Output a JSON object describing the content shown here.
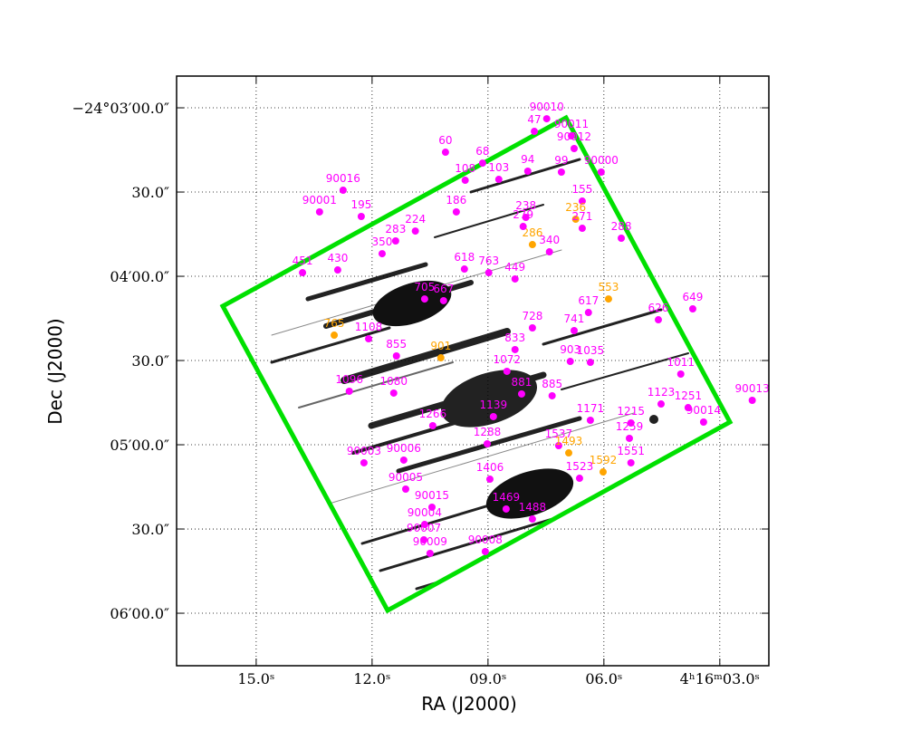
{
  "chart_data": {
    "type": "scatter",
    "x_label": "RA (J2000)",
    "y_label": "Dec (J2000)",
    "xlim": [
      17.06,
      1.73
    ],
    "ylim": [
      -24.105194,
      -24.046861
    ],
    "xticks": [
      {
        "value": 15,
        "label": "15.0ˢ"
      },
      {
        "value": 12,
        "label": "12.0ˢ"
      },
      {
        "value": 9,
        "label": "09.0ˢ"
      },
      {
        "value": 6,
        "label": "06.0ˢ"
      },
      {
        "value": 3,
        "label": "4ʰ16ᵐ03.0ˢ"
      }
    ],
    "yticks": [
      {
        "value": -24.05,
        "label": "−24°03′00.0″"
      },
      {
        "value": -24.058333,
        "label": "30.0″"
      },
      {
        "value": -24.066667,
        "label": "04′00.0″"
      },
      {
        "value": -24.075,
        "label": "30.0″"
      },
      {
        "value": -24.083333,
        "label": "05′00.0″"
      },
      {
        "value": -24.091667,
        "label": "30.0″"
      },
      {
        "value": -24.1,
        "label": "06′00.0″"
      }
    ],
    "grid": true,
    "point_labels": [
      "90010",
      "90011",
      "47",
      "90012",
      "60",
      "68",
      "90000",
      "94",
      "99",
      "103",
      "108",
      "90016",
      "90001",
      "195",
      "155",
      "186",
      "236",
      "238",
      "288",
      "224",
      "283",
      "286",
      "340",
      "430",
      "451",
      "618",
      "763",
      "449",
      "553",
      "617",
      "649",
      "626",
      "705",
      "667",
      "765",
      "1108",
      "728",
      "741",
      "855",
      "901",
      "903",
      "1035",
      "1011",
      "1080",
      "1096",
      "881",
      "885",
      "1139",
      "1171",
      "1123",
      "1251",
      "90013",
      "90014",
      "1215",
      "1259",
      "1266",
      "1288",
      "1537",
      "1493",
      "1551",
      "1592",
      "1523",
      "90003",
      "90006",
      "90005",
      "1406",
      "90015",
      "1469",
      "1488",
      "90004",
      "90007",
      "90009",
      "90008",
      "1072",
      "833",
      "279",
      "271",
      "350"
    ],
    "x": [
      7.48,
      6.84,
      7.8,
      6.77,
      10.1,
      9.14,
      6.07,
      7.97,
      7.1,
      8.72,
      9.59,
      12.75,
      13.36,
      12.28,
      6.56,
      9.82,
      6.73,
      8.02,
      5.55,
      10.88,
      11.39,
      7.85,
      7.41,
      12.89,
      13.8,
      9.61,
      8.98,
      8.3,
      5.88,
      6.4,
      3.7,
      4.59,
      10.64,
      10.15,
      12.98,
      12.09,
      7.85,
      6.77,
      11.37,
      10.22,
      6.87,
      6.35,
      4.01,
      11.44,
      12.59,
      8.13,
      7.34,
      8.86,
      6.35,
      4.52,
      3.82,
      2.16,
      3.42,
      5.3,
      5.34,
      10.43,
      9.02,
      7.17,
      6.91,
      5.3,
      6.02,
      6.63,
      12.21,
      11.18,
      11.13,
      8.95,
      10.45,
      8.53,
      7.85,
      10.64,
      10.66,
      10.5,
      9.07,
      8.51,
      8.3,
      8.09,
      6.56,
      11.74
    ],
    "values": [
      -24.05108,
      -24.05278,
      -24.05233,
      -24.05403,
      -24.05439,
      -24.05547,
      -24.05636,
      -24.05627,
      -24.05636,
      -24.05708,
      -24.05717,
      -24.05815,
      -24.0603,
      -24.06075,
      -24.05923,
      -24.0603,
      -24.06102,
      -24.06084,
      -24.0629,
      -24.06219,
      -24.06317,
      -24.06353,
      -24.06425,
      -24.06604,
      -24.06631,
      -24.06595,
      -24.06631,
      -24.06693,
      -24.06891,
      -24.07025,
      -24.06989,
      -24.07097,
      -24.06891,
      -24.06908,
      -24.07249,
      -24.07285,
      -24.07177,
      -24.07204,
      -24.07455,
      -24.07473,
      -24.07509,
      -24.07518,
      -24.07634,
      -24.07822,
      -24.07804,
      -24.07831,
      -24.07849,
      -24.08055,
      -24.08091,
      -24.0793,
      -24.07966,
      -24.07894,
      -24.08109,
      -24.08118,
      -24.0827,
      -24.08145,
      -24.08324,
      -24.08342,
      -24.08414,
      -24.08512,
      -24.08602,
      -24.08665,
      -24.08512,
      -24.08485,
      -24.08772,
      -24.08674,
      -24.08951,
      -24.08969,
      -24.09068,
      -24.09122,
      -24.09274,
      -24.09408,
      -24.0939,
      -24.07607,
      -24.07392,
      -24.06174,
      -24.06192,
      -24.06443
    ],
    "colors": [
      "#ff00ff",
      "#ff00ff",
      "#ff00ff",
      "#ff00ff",
      "#ff00ff",
      "#ff00ff",
      "#ff00ff",
      "#ff00ff",
      "#ff00ff",
      "#ff00ff",
      "#ff00ff",
      "#ff00ff",
      "#ff00ff",
      "#ff00ff",
      "#ff00ff",
      "#ff00ff",
      "#ffa500",
      "#ff00ff",
      "#ff00ff",
      "#ff00ff",
      "#ff00ff",
      "#ffa500",
      "#ff00ff",
      "#ff00ff",
      "#ff00ff",
      "#ff00ff",
      "#ff00ff",
      "#ff00ff",
      "#ffa500",
      "#ff00ff",
      "#ff00ff",
      "#ff00ff",
      "#ff00ff",
      "#ff00ff",
      "#ffa500",
      "#ff00ff",
      "#ff00ff",
      "#ff00ff",
      "#ff00ff",
      "#ffa500",
      "#ff00ff",
      "#ff00ff",
      "#ff00ff",
      "#ff00ff",
      "#ff00ff",
      "#ff00ff",
      "#ff00ff",
      "#ff00ff",
      "#ff00ff",
      "#ff00ff",
      "#ff00ff",
      "#ff00ff",
      "#ff00ff",
      "#ff00ff",
      "#ff00ff",
      "#ff00ff",
      "#ff00ff",
      "#ff00ff",
      "#ffa500",
      "#ff00ff",
      "#ffa500",
      "#ff00ff",
      "#ff00ff",
      "#ff00ff",
      "#ff00ff",
      "#ff00ff",
      "#ff00ff",
      "#ff00ff",
      "#ff00ff",
      "#ff00ff",
      "#ff00ff",
      "#ff00ff",
      "#ff00ff",
      "#ff00ff",
      "#ff00ff",
      "#ff00ff",
      "#ff00ff",
      "#ff00ff"
    ]
  }
}
